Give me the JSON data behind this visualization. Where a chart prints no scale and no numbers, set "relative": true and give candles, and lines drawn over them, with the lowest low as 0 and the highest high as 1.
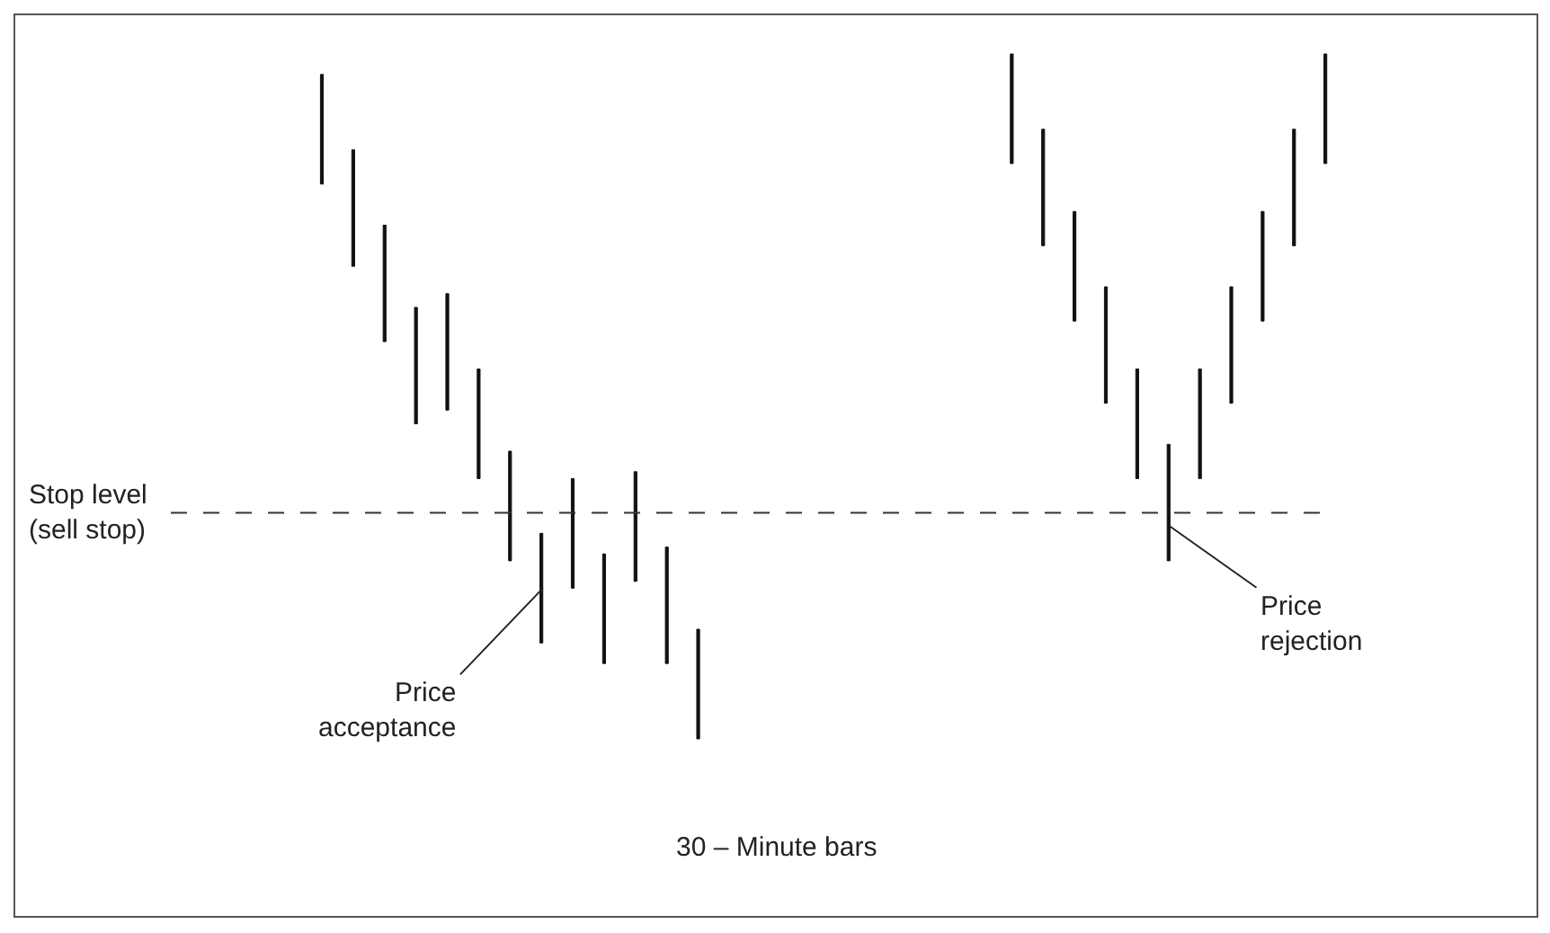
{
  "chart_data": {
    "type": "candlestick",
    "relative": true,
    "xlabel": "30 – Minute bars",
    "color": "#111111",
    "categories": [
      null,
      null,
      null,
      null,
      null,
      null,
      null,
      null,
      null,
      null,
      null,
      null,
      null,
      null,
      null,
      null,
      null,
      null,
      null,
      null,
      null,
      null,
      null,
      null,
      null,
      null,
      null,
      null,
      null,
      null,
      null,
      null,
      null
    ],
    "ohlc": [
      [
        0.97,
        0.97,
        0.81,
        0.81
      ],
      [
        0.86,
        0.86,
        0.69,
        0.69
      ],
      [
        0.75,
        0.75,
        0.58,
        0.58
      ],
      [
        0.63,
        0.63,
        0.46,
        0.46
      ],
      [
        0.65,
        0.65,
        0.48,
        0.48
      ],
      [
        0.54,
        0.54,
        0.38,
        0.38
      ],
      [
        0.42,
        0.42,
        0.26,
        0.26
      ],
      [
        0.3,
        0.3,
        0.14,
        0.14
      ],
      [
        0.38,
        0.38,
        0.22,
        0.22
      ],
      [
        0.27,
        0.27,
        0.11,
        0.11
      ],
      [
        0.39,
        0.39,
        0.23,
        0.23
      ],
      [
        0.28,
        0.28,
        0.11,
        0.11
      ],
      [
        0.16,
        0.16,
        0,
        0
      ],
      null,
      null,
      null,
      null,
      null,
      null,
      null,
      null,
      null,
      [
        1,
        1,
        0.84,
        0.84
      ],
      [
        0.89,
        0.89,
        0.72,
        0.72
      ],
      [
        0.77,
        0.77,
        0.61,
        0.61
      ],
      [
        0.66,
        0.66,
        0.49,
        0.49
      ],
      [
        0.54,
        0.54,
        0.38,
        0.38
      ],
      [
        0.43,
        0.43,
        0.26,
        0.26
      ],
      [
        0.54,
        0.54,
        0.38,
        0.38
      ],
      [
        0.66,
        0.66,
        0.49,
        0.49
      ],
      [
        0.77,
        0.77,
        0.61,
        0.61
      ],
      [
        0.89,
        0.89,
        0.72,
        0.72
      ],
      [
        1,
        1,
        0.84,
        0.84
      ]
    ],
    "ref_lines": [
      {
        "axis": "y",
        "value": 0.33,
        "label": "Stop level\n(sell stop)",
        "line_style": "dashed"
      }
    ],
    "annotations": [
      "Price\nacceptance",
      "Price\nrejection"
    ],
    "legend": false
  }
}
